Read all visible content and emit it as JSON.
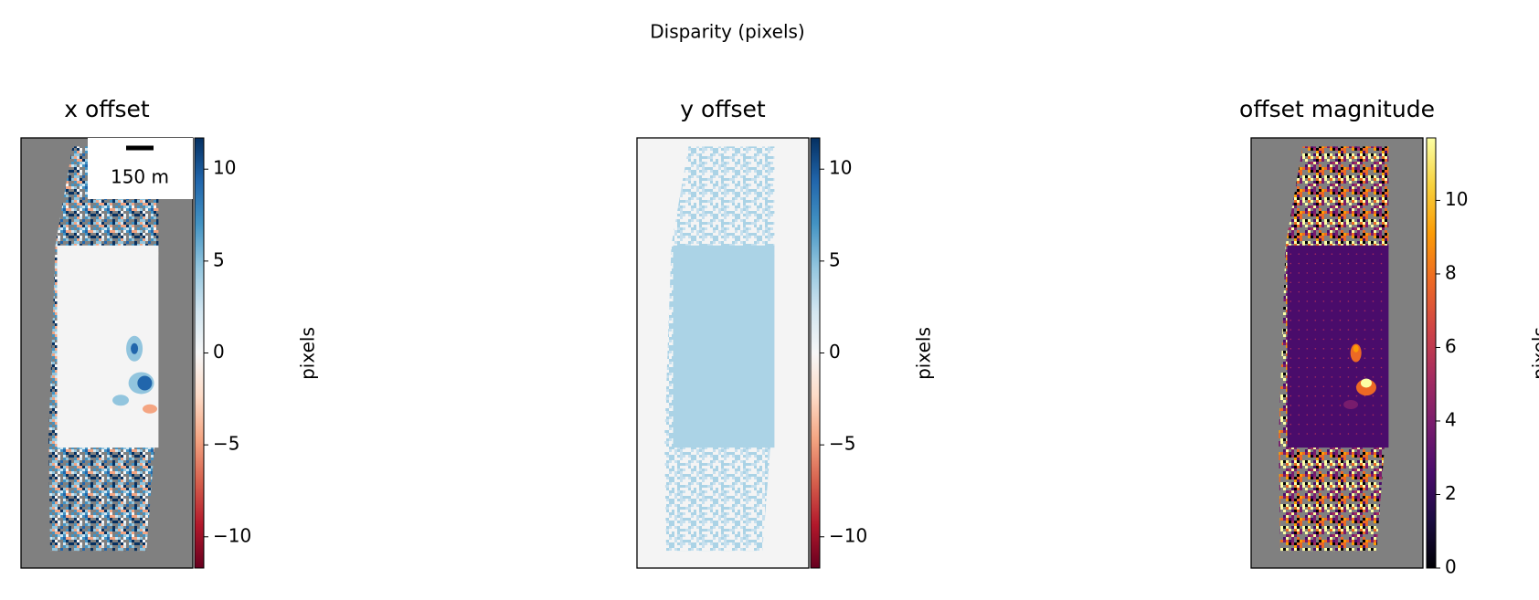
{
  "title": "Disparity (pixels)",
  "chart_data": [
    {
      "type": "image",
      "title": "x offset",
      "colormap": "RdBu",
      "background": "#808080",
      "clim": [
        -11.7,
        11.7
      ],
      "cticks": [
        {
          "value": -10,
          "label": "−10"
        },
        {
          "value": -5,
          "label": "−5"
        },
        0,
        5,
        10
      ],
      "colorbar_label": "pixels",
      "scalebar": "150 m"
    },
    {
      "type": "image",
      "title": "y offset",
      "colormap": "RdBu",
      "background": "#f4f4f4",
      "clim": [
        -11.7,
        11.7
      ],
      "cticks": [
        {
          "value": -10,
          "label": "−10"
        },
        {
          "value": -5,
          "label": "−5"
        },
        0,
        5,
        10
      ],
      "colorbar_label": "pixels"
    },
    {
      "type": "image",
      "title": "offset magnitude",
      "colormap": "inferno",
      "background": "#808080",
      "clim": [
        0,
        11.7
      ],
      "cticks": [
        0,
        2,
        4,
        6,
        8,
        10
      ],
      "colorbar_label": "pixels"
    }
  ]
}
